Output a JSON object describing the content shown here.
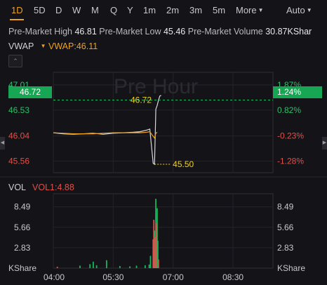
{
  "timeframes": {
    "items": [
      "1D",
      "5D",
      "D",
      "W",
      "M",
      "Q",
      "Y",
      "1m",
      "2m",
      "3m",
      "5m"
    ],
    "active": "1D",
    "more_label": "More",
    "auto_label": "Auto"
  },
  "stats": {
    "high_label": "Pre-Market High",
    "high_value": "46.81",
    "low_label": "Pre-Market Low",
    "low_value": "45.46",
    "volume_label": "Pre-Market Volume",
    "volume_value": "30.87KShar"
  },
  "indicators": {
    "vwap_label": "VWAP",
    "vwap_value": "VWAP:46.11",
    "vol_label": "VOL",
    "vol_value": "VOL1:4.88"
  },
  "watermark": "Pre Hour",
  "colors": {
    "accent": "#f0a020",
    "up": "#17a654",
    "down": "#e0504a",
    "price_line": "#d8d8dc",
    "vwap_line": "#f0a020"
  },
  "chart_data": [
    {
      "type": "line",
      "title": "",
      "x_range": [
        "04:00",
        "09:30"
      ],
      "x_ticks": [
        "04:00",
        "05:30",
        "07:00",
        "08:30"
      ],
      "y_ticks_left": [
        "47.01",
        "46.53",
        "46.04",
        "45.56"
      ],
      "y_ticks_right": [
        "1.87%",
        "0.82%",
        "-0.23%",
        "-1.28%"
      ],
      "ylim": [
        45.34,
        47.25
      ],
      "current_price": "46.72",
      "current_change": "1.24%",
      "low_marker": "45.50",
      "series": [
        {
          "name": "Price",
          "x": [
            "04:00",
            "04:15",
            "04:30",
            "04:45",
            "05:00",
            "05:15",
            "05:30",
            "05:45",
            "06:00",
            "06:10",
            "06:20",
            "06:25",
            "06:30",
            "06:32",
            "06:34",
            "06:36",
            "06:38",
            "06:40",
            "06:42"
          ],
          "values": [
            46.1,
            46.08,
            46.07,
            46.08,
            46.09,
            46.07,
            46.09,
            46.1,
            46.11,
            46.12,
            46.15,
            46.17,
            45.52,
            45.5,
            46.55,
            46.62,
            46.72,
            46.8,
            46.81
          ]
        },
        {
          "name": "VWAP",
          "x": [
            "04:00",
            "04:15",
            "04:30",
            "04:45",
            "05:00",
            "05:15",
            "05:30",
            "05:45",
            "06:00",
            "06:10",
            "06:20",
            "06:25",
            "06:30",
            "06:32",
            "06:34",
            "06:36"
          ],
          "values": [
            46.1,
            46.09,
            46.08,
            46.08,
            46.08,
            46.09,
            46.1,
            46.1,
            46.1,
            46.1,
            46.11,
            46.12,
            46.03,
            46.0,
            46.09,
            46.11
          ]
        }
      ]
    },
    {
      "type": "bar",
      "title": "",
      "y_ticks": [
        "8.49",
        "5.66",
        "2.83"
      ],
      "unit_label": "KShare",
      "ylim": [
        0,
        10.3
      ],
      "bars": [
        {
          "x": "04:06",
          "value": 0.2,
          "dir": "down"
        },
        {
          "x": "04:40",
          "value": 0.35,
          "dir": "up"
        },
        {
          "x": "04:55",
          "value": 0.55,
          "dir": "up"
        },
        {
          "x": "05:00",
          "value": 0.9,
          "dir": "up"
        },
        {
          "x": "05:05",
          "value": 0.4,
          "dir": "up"
        },
        {
          "x": "05:20",
          "value": 1.1,
          "dir": "up"
        },
        {
          "x": "05:40",
          "value": 0.3,
          "dir": "up"
        },
        {
          "x": "05:55",
          "value": 0.25,
          "dir": "up"
        },
        {
          "x": "06:05",
          "value": 0.35,
          "dir": "up"
        },
        {
          "x": "06:18",
          "value": 0.4,
          "dir": "up"
        },
        {
          "x": "06:24",
          "value": 0.5,
          "dir": "up"
        },
        {
          "x": "06:26",
          "value": 1.7,
          "dir": "up"
        },
        {
          "x": "06:30",
          "value": 4.0,
          "dir": "down"
        },
        {
          "x": "06:31",
          "value": 6.7,
          "dir": "down"
        },
        {
          "x": "06:32",
          "value": 5.2,
          "dir": "up"
        },
        {
          "x": "06:33",
          "value": 4.3,
          "dir": "down"
        },
        {
          "x": "06:34",
          "value": 9.6,
          "dir": "up"
        },
        {
          "x": "06:35",
          "value": 6.2,
          "dir": "down"
        },
        {
          "x": "06:36",
          "value": 8.3,
          "dir": "up"
        },
        {
          "x": "06:37",
          "value": 3.8,
          "dir": "up"
        },
        {
          "x": "06:38",
          "value": 1.2,
          "dir": "down"
        }
      ]
    }
  ]
}
